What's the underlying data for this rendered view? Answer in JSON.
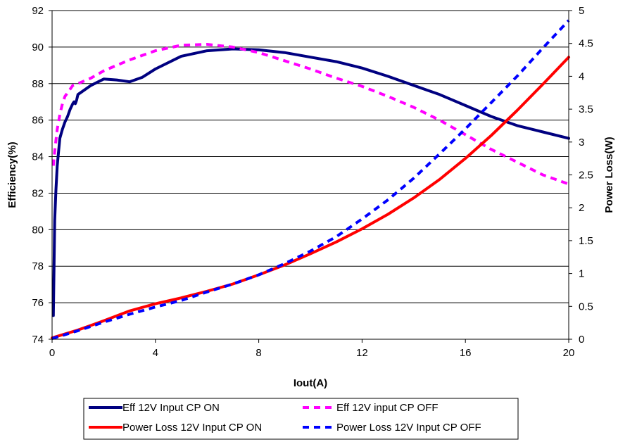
{
  "chart_data": {
    "type": "line",
    "title": "",
    "xlabel": "Iout(A)",
    "ylabel_left": "Efficiency(%)",
    "ylabel_right": "Power Loss(W)",
    "xlim": [
      0,
      20
    ],
    "ylim_left": [
      74,
      92
    ],
    "ylim_right": [
      0,
      5
    ],
    "x_ticks": [
      "0",
      "4",
      "8",
      "12",
      "16",
      "20"
    ],
    "y_left_ticks": [
      "74",
      "76",
      "78",
      "80",
      "82",
      "84",
      "86",
      "88",
      "90",
      "92"
    ],
    "y_right_ticks": [
      "0",
      "0.5",
      "1",
      "1.5",
      "2",
      "2.5",
      "3",
      "3.5",
      "4",
      "4.5",
      "5"
    ],
    "grid": "horizontal",
    "legend_position": "bottom",
    "series": [
      {
        "name": "Eff 12V Input CP ON",
        "axis": "left",
        "color": "#000080",
        "dash": "solid",
        "x": [
          0.05,
          0.1,
          0.15,
          0.2,
          0.3,
          0.4,
          0.5,
          0.6,
          0.7,
          0.8,
          0.85,
          0.9,
          0.95,
          1.0,
          1.5,
          2.0,
          2.5,
          3.0,
          3.5,
          4.0,
          5.0,
          6.0,
          7.0,
          8.0,
          9.0,
          10.0,
          11.0,
          12.0,
          13.0,
          14.0,
          15.0,
          16.0,
          17.0,
          18.0,
          19.0,
          20.0
        ],
        "y": [
          75.3,
          80.5,
          82.2,
          83.5,
          85.0,
          85.5,
          85.9,
          86.2,
          86.6,
          86.9,
          87.0,
          86.9,
          87.1,
          87.4,
          87.9,
          88.25,
          88.2,
          88.1,
          88.35,
          88.8,
          89.5,
          89.8,
          89.9,
          89.85,
          89.7,
          89.45,
          89.2,
          88.85,
          88.4,
          87.9,
          87.4,
          86.8,
          86.2,
          85.7,
          85.35,
          85.0
        ]
      },
      {
        "name": "Eff 12V input CP OFF",
        "axis": "left",
        "color": "#ff00ff",
        "dash": "dashed",
        "x": [
          0.05,
          0.1,
          0.2,
          0.3,
          0.4,
          0.5,
          0.6,
          0.7,
          0.8,
          1.0,
          1.5,
          2.0,
          3.0,
          4.0,
          5.0,
          6.0,
          7.0,
          8.0,
          9.0,
          10.0,
          11.0,
          12.0,
          13.0,
          14.0,
          15.0,
          16.0,
          17.0,
          18.0,
          19.0,
          20.0
        ],
        "y": [
          83.5,
          84.3,
          85.5,
          86.3,
          86.9,
          87.3,
          87.5,
          87.7,
          87.9,
          88.0,
          88.3,
          88.7,
          89.3,
          89.8,
          90.1,
          90.15,
          90.0,
          89.7,
          89.25,
          88.8,
          88.3,
          87.85,
          87.3,
          86.7,
          86.0,
          85.2,
          84.4,
          83.7,
          83.0,
          82.5
        ]
      },
      {
        "name": "Power Loss 12V Input CP ON",
        "axis": "right",
        "color": "#ff0000",
        "dash": "solid",
        "x": [
          0,
          1,
          2,
          3,
          4,
          5,
          6,
          7,
          8,
          9,
          10,
          11,
          12,
          13,
          14,
          15,
          16,
          17,
          18,
          19,
          20
        ],
        "y": [
          0.02,
          0.14,
          0.28,
          0.43,
          0.54,
          0.63,
          0.73,
          0.84,
          0.98,
          1.13,
          1.3,
          1.48,
          1.68,
          1.9,
          2.15,
          2.43,
          2.75,
          3.1,
          3.48,
          3.88,
          4.29
        ]
      },
      {
        "name": "Power Loss 12V Input  CP OFF",
        "axis": "right",
        "color": "#0000ff",
        "dash": "dashed",
        "x": [
          0,
          1,
          2,
          3,
          4,
          5,
          6,
          7,
          8,
          9,
          10,
          11,
          12,
          13,
          14,
          15,
          16,
          17,
          18,
          19,
          20
        ],
        "y": [
          0.01,
          0.13,
          0.26,
          0.38,
          0.49,
          0.59,
          0.72,
          0.84,
          0.98,
          1.15,
          1.34,
          1.56,
          1.83,
          2.12,
          2.45,
          2.82,
          3.2,
          3.6,
          4.0,
          4.43,
          4.85
        ]
      }
    ]
  }
}
